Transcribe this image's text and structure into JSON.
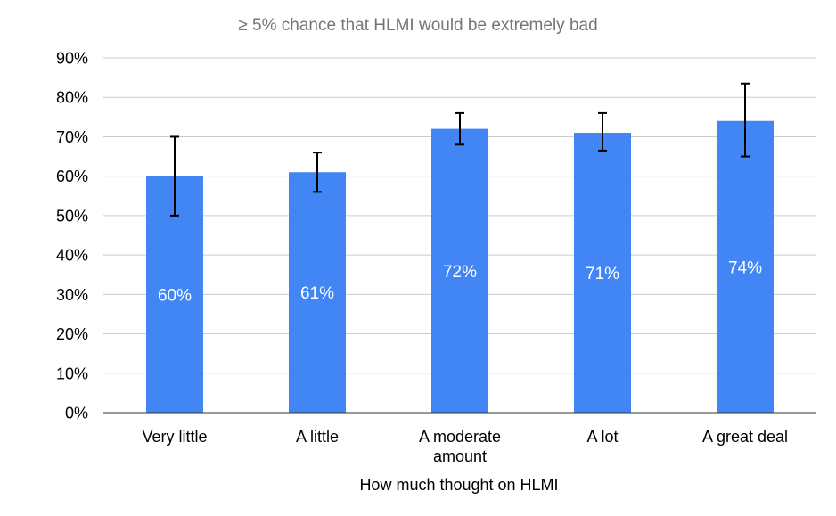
{
  "chart_data": {
    "type": "bar",
    "title": "≥ 5% chance that HLMI would be extremely bad",
    "xlabel": "How much thought on HLMI",
    "ylabel": "",
    "categories": [
      [
        "Very little"
      ],
      [
        "A little"
      ],
      [
        "A moderate",
        "amount"
      ],
      [
        "A lot"
      ],
      [
        "A great deal"
      ]
    ],
    "values": [
      60,
      61,
      72,
      71,
      74
    ],
    "data_labels": [
      "60%",
      "61%",
      "72%",
      "71%",
      "74%"
    ],
    "error_bars": [
      {
        "low": 50,
        "high": 70
      },
      {
        "low": 56,
        "high": 66
      },
      {
        "low": 68,
        "high": 76
      },
      {
        "low": 66.5,
        "high": 76
      },
      {
        "low": 65,
        "high": 83.5
      }
    ],
    "ylim": [
      0,
      90
    ],
    "y_ticks": [
      "0%",
      "10%",
      "20%",
      "30%",
      "40%",
      "50%",
      "60%",
      "70%",
      "80%",
      "90%"
    ],
    "grid": true,
    "legend": "none",
    "colors": {
      "bar": "#4285f4",
      "grid": "#cccccc",
      "axis": "#333333",
      "error_bar": "#000000",
      "title": "#757575",
      "data_label": "#ffffff"
    }
  }
}
